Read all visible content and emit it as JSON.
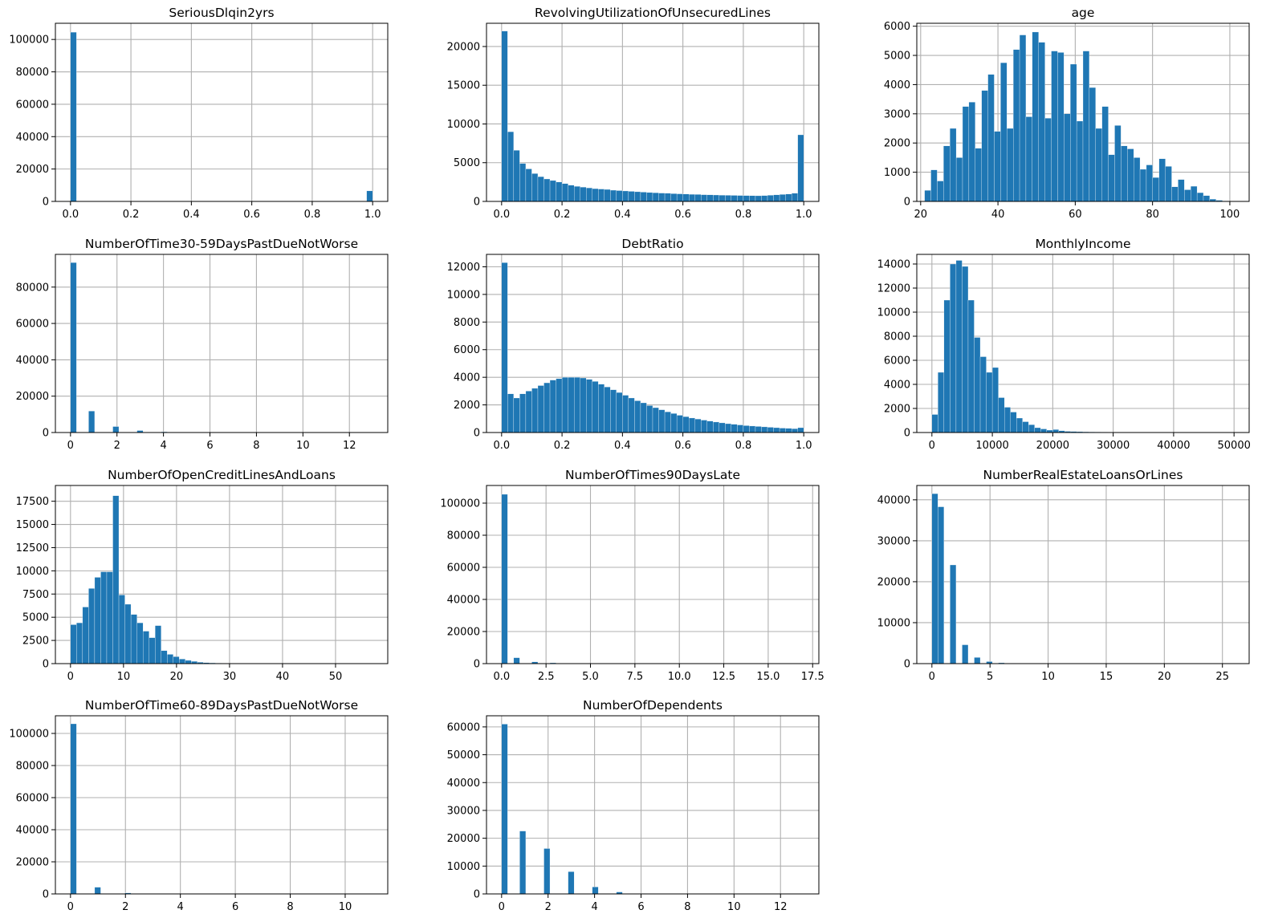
{
  "chart_data": [
    {
      "type": "bar",
      "title": "SeriousDlqin2yrs",
      "xlim": [
        -0.05,
        1.05
      ],
      "ylim": [
        0,
        110000
      ],
      "xticks": [
        0.0,
        0.2,
        0.4,
        0.6,
        0.8,
        1.0
      ],
      "xtick_labels": [
        "0.0",
        "0.2",
        "0.4",
        "0.6",
        "0.8",
        "1.0"
      ],
      "yticks": [
        0,
        20000,
        40000,
        60000,
        80000,
        100000
      ],
      "ytick_labels": [
        "0",
        "20000",
        "40000",
        "60000",
        "80000",
        "100000"
      ],
      "bins": {
        "start": 0,
        "end": 1,
        "count": 50
      },
      "values": {
        "0": 104500,
        "49": 6500
      },
      "grid": true
    },
    {
      "type": "bar",
      "title": "RevolvingUtilizationOfUnsecuredLines",
      "xlim": [
        -0.05,
        1.05
      ],
      "ylim": [
        0,
        23000
      ],
      "xticks": [
        0.0,
        0.2,
        0.4,
        0.6,
        0.8,
        1.0
      ],
      "xtick_labels": [
        "0.0",
        "0.2",
        "0.4",
        "0.6",
        "0.8",
        "1.0"
      ],
      "yticks": [
        0,
        5000,
        10000,
        15000,
        20000
      ],
      "ytick_labels": [
        "0",
        "5000",
        "10000",
        "15000",
        "20000"
      ],
      "bins": {
        "start": 0,
        "end": 1,
        "count": 50
      },
      "values": [
        22000,
        9000,
        6600,
        4900,
        4200,
        3600,
        3200,
        2900,
        2700,
        2500,
        2300,
        2100,
        1950,
        1850,
        1750,
        1650,
        1600,
        1550,
        1450,
        1400,
        1350,
        1300,
        1250,
        1200,
        1150,
        1120,
        1080,
        1050,
        1000,
        980,
        950,
        920,
        900,
        870,
        850,
        830,
        810,
        790,
        780,
        770,
        760,
        740,
        730,
        760,
        800,
        850,
        900,
        950,
        1050,
        8600
      ],
      "grid": true
    },
    {
      "type": "bar",
      "title": "age",
      "xlim": [
        19,
        105
      ],
      "ylim": [
        0,
        6100
      ],
      "xticks": [
        20,
        40,
        60,
        80,
        100
      ],
      "xtick_labels": [
        "20",
        "40",
        "60",
        "80",
        "100"
      ],
      "yticks": [
        0,
        1000,
        2000,
        3000,
        4000,
        5000,
        6000
      ],
      "ytick_labels": [
        "0",
        "1000",
        "2000",
        "3000",
        "4000",
        "5000",
        "6000"
      ],
      "bins": {
        "start": 21,
        "end": 103,
        "count": 50
      },
      "values": [
        380,
        1080,
        700,
        1900,
        2500,
        1500,
        3250,
        3400,
        1820,
        3800,
        4350,
        2400,
        4750,
        2500,
        5200,
        5700,
        2900,
        5800,
        5450,
        2850,
        5150,
        5100,
        3000,
        4700,
        2750,
        5150,
        3900,
        2500,
        3250,
        1600,
        2600,
        1900,
        1800,
        1500,
        1100,
        1250,
        820,
        1460,
        1200,
        500,
        750,
        400,
        520,
        300,
        200,
        80,
        40,
        15,
        10,
        8
      ],
      "grid": true
    },
    {
      "type": "bar",
      "title": "NumberOfTime30-59DaysPastDueNotWorse",
      "xlim": [
        -0.65,
        13.65
      ],
      "ylim": [
        0,
        98000
      ],
      "xticks": [
        0,
        2,
        4,
        6,
        8,
        10,
        12
      ],
      "xtick_labels": [
        "0",
        "2",
        "4",
        "6",
        "8",
        "10",
        "12"
      ],
      "yticks": [
        0,
        20000,
        40000,
        60000,
        80000
      ],
      "ytick_labels": [
        "0",
        "20000",
        "40000",
        "60000",
        "80000"
      ],
      "bins": {
        "start": 0,
        "end": 13,
        "count": 50
      },
      "values": {
        "0": 93500,
        "3": 11800,
        "7": 3300,
        "11": 1100,
        "15": 400,
        "19": 150,
        "23": 50
      },
      "grid": true
    },
    {
      "type": "bar",
      "title": "DebtRatio",
      "xlim": [
        -0.05,
        1.05
      ],
      "ylim": [
        0,
        12900
      ],
      "xticks": [
        0.0,
        0.2,
        0.4,
        0.6,
        0.8,
        1.0
      ],
      "xtick_labels": [
        "0.0",
        "0.2",
        "0.4",
        "0.6",
        "0.8",
        "1.0"
      ],
      "yticks": [
        0,
        2000,
        4000,
        6000,
        8000,
        10000,
        12000
      ],
      "ytick_labels": [
        "0",
        "2000",
        "4000",
        "6000",
        "8000",
        "10000",
        "12000"
      ],
      "bins": {
        "start": 0,
        "end": 1,
        "count": 50
      },
      "values": [
        12300,
        2800,
        2500,
        2800,
        3000,
        3200,
        3400,
        3600,
        3800,
        3900,
        4000,
        4000,
        4000,
        3950,
        3850,
        3700,
        3500,
        3300,
        3100,
        2900,
        2700,
        2500,
        2300,
        2150,
        1950,
        1800,
        1650,
        1500,
        1380,
        1250,
        1150,
        1050,
        980,
        900,
        830,
        760,
        700,
        640,
        600,
        550,
        500,
        470,
        440,
        410,
        380,
        350,
        320,
        300,
        280,
        350
      ],
      "grid": true
    },
    {
      "type": "bar",
      "title": "MonthlyIncome",
      "xlim": [
        -2500,
        52500
      ],
      "ylim": [
        0,
        14800
      ],
      "xticks": [
        0,
        10000,
        20000,
        30000,
        40000,
        50000
      ],
      "xtick_labels": [
        "0",
        "10000",
        "20000",
        "30000",
        "40000",
        "50000"
      ],
      "yticks": [
        0,
        2000,
        4000,
        6000,
        8000,
        10000,
        12000,
        14000
      ],
      "ytick_labels": [
        "0",
        "2000",
        "4000",
        "6000",
        "8000",
        "10000",
        "12000",
        "14000"
      ],
      "bins": {
        "start": 0,
        "end": 50000,
        "count": 50
      },
      "values": [
        1500,
        5000,
        11000,
        14000,
        14300,
        13800,
        11000,
        7900,
        6300,
        5000,
        5400,
        2900,
        2100,
        1700,
        1200,
        900,
        650,
        400,
        300,
        200,
        250,
        150,
        100,
        90,
        70,
        60,
        50,
        40,
        35,
        30,
        25,
        20,
        18,
        15,
        12,
        10,
        10,
        8,
        6,
        5,
        5,
        4,
        4,
        3,
        3,
        2,
        2,
        2,
        1,
        1
      ],
      "grid": true
    },
    {
      "type": "bar",
      "title": "NumberOfOpenCreditLinesAndLoans",
      "xlim": [
        -2.85,
        59.85
      ],
      "ylim": [
        0,
        19200
      ],
      "xticks": [
        0,
        10,
        20,
        30,
        40,
        50
      ],
      "xtick_labels": [
        "0",
        "10",
        "20",
        "30",
        "40",
        "50"
      ],
      "yticks": [
        0,
        2500,
        5000,
        7500,
        10000,
        12500,
        15000,
        17500
      ],
      "ytick_labels": [
        "0",
        "2500",
        "5000",
        "7500",
        "10000",
        "12500",
        "15000",
        "17500"
      ],
      "bins": {
        "start": 0,
        "end": 57,
        "count": 50
      },
      "values": [
        4200,
        4400,
        6100,
        8100,
        9300,
        9900,
        9900,
        18100,
        7400,
        6400,
        5300,
        4400,
        3500,
        2800,
        4100,
        1400,
        1000,
        750,
        500,
        350,
        250,
        150,
        100,
        80,
        50,
        40,
        30,
        20,
        15,
        10,
        8,
        5,
        4,
        3,
        2,
        2,
        1,
        1,
        1,
        1,
        1,
        1,
        1,
        1,
        1,
        1,
        1,
        1,
        1,
        1
      ],
      "grid": true
    },
    {
      "type": "bar",
      "title": "NumberOfTimes90DaysLate",
      "xlim": [
        -0.85,
        17.85
      ],
      "ylim": [
        0,
        111000
      ],
      "xticks": [
        0.0,
        2.5,
        5.0,
        7.5,
        10.0,
        12.5,
        15.0,
        17.5
      ],
      "xtick_labels": [
        "0.0",
        "2.5",
        "5.0",
        "7.5",
        "10.0",
        "12.5",
        "15.0",
        "17.5"
      ],
      "yticks": [
        0,
        20000,
        40000,
        60000,
        80000,
        100000
      ],
      "ytick_labels": [
        "0",
        "20000",
        "40000",
        "60000",
        "80000",
        "100000"
      ],
      "bins": {
        "start": 0,
        "end": 17,
        "count": 50
      },
      "values": {
        "0": 105500,
        "2": 3700,
        "5": 1100,
        "8": 500,
        "11": 200,
        "14": 100
      },
      "grid": true
    },
    {
      "type": "bar",
      "title": "NumberRealEstateLoansOrLines",
      "xlim": [
        -1.3,
        27.3
      ],
      "ylim": [
        0,
        43500
      ],
      "xticks": [
        0,
        5,
        10,
        15,
        20,
        25
      ],
      "xtick_labels": [
        "0",
        "5",
        "10",
        "15",
        "20",
        "25"
      ],
      "yticks": [
        0,
        10000,
        20000,
        30000,
        40000
      ],
      "ytick_labels": [
        "0",
        "10000",
        "20000",
        "30000",
        "40000"
      ],
      "bins": {
        "start": 0,
        "end": 26,
        "count": 50
      },
      "values": {
        "0": 41500,
        "1": 38300,
        "3": 24100,
        "5": 4600,
        "7": 1500,
        "9": 500,
        "11": 200,
        "13": 100
      },
      "grid": true
    },
    {
      "type": "bar",
      "title": "NumberOfTime60-89DaysPastDueNotWorse",
      "xlim": [
        -0.55,
        11.55
      ],
      "ylim": [
        0,
        111000
      ],
      "xticks": [
        0,
        2,
        4,
        6,
        8,
        10
      ],
      "xtick_labels": [
        "0",
        "2",
        "4",
        "6",
        "8",
        "10"
      ],
      "yticks": [
        0,
        20000,
        40000,
        60000,
        80000,
        100000
      ],
      "ytick_labels": [
        "0",
        "20000",
        "40000",
        "60000",
        "80000",
        "100000"
      ],
      "bins": {
        "start": 0,
        "end": 11,
        "count": 50
      },
      "values": {
        "0": 106000,
        "4": 4200,
        "9": 600,
        "13": 150
      },
      "grid": true
    },
    {
      "type": "bar",
      "title": "NumberOfDependents",
      "xlim": [
        -0.65,
        13.65
      ],
      "ylim": [
        0,
        64000
      ],
      "xticks": [
        0,
        2,
        4,
        6,
        8,
        10,
        12
      ],
      "xtick_labels": [
        "0",
        "2",
        "4",
        "6",
        "8",
        "10",
        "12"
      ],
      "yticks": [
        0,
        10000,
        20000,
        30000,
        40000,
        50000,
        60000
      ],
      "ytick_labels": [
        "0",
        "10000",
        "20000",
        "30000",
        "40000",
        "50000",
        "60000"
      ],
      "bins": {
        "start": 0,
        "end": 13,
        "count": 50
      },
      "values": {
        "0": 61000,
        "3": 22600,
        "7": 16300,
        "11": 8000,
        "15": 2500,
        "19": 700,
        "23": 150
      },
      "grid": true
    }
  ]
}
